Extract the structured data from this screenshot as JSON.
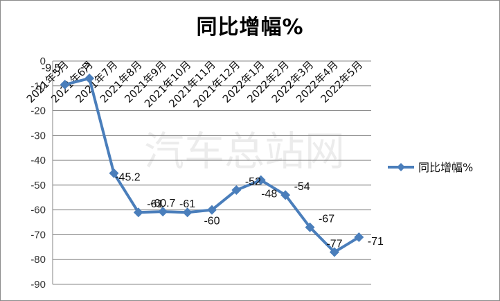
{
  "chart_data": {
    "type": "line",
    "title": "同比增幅%",
    "categories": [
      "2021年5月",
      "2021年6月",
      "2021年7月",
      "2021年8月",
      "2021年9月",
      "2021年10月",
      "2021年11月",
      "2021年12月",
      "2022年1月",
      "2022年2月",
      "2022年3月",
      "2022年4月",
      "2022年5月"
    ],
    "series": [
      {
        "name": "同比增幅%",
        "values": [
          -9.5,
          -7,
          -45.2,
          -61,
          -60.7,
          -61,
          -60,
          -52,
          -48,
          -54,
          -67,
          -77,
          -71
        ],
        "color": "#4a7ebb"
      }
    ],
    "data_labels": [
      "-9.5",
      "-7",
      "-45.2",
      "-61",
      "-60.7",
      "-61",
      "-60",
      "-52",
      "-48",
      "-54",
      "-67",
      "-77",
      "-71"
    ],
    "ylim": [
      -90,
      0
    ],
    "yticks": [
      0,
      -10,
      -20,
      -30,
      -40,
      -50,
      -60,
      -70,
      -80,
      -90
    ],
    "grid": true,
    "legend_position": "right"
  },
  "watermark": "汽车总站网"
}
